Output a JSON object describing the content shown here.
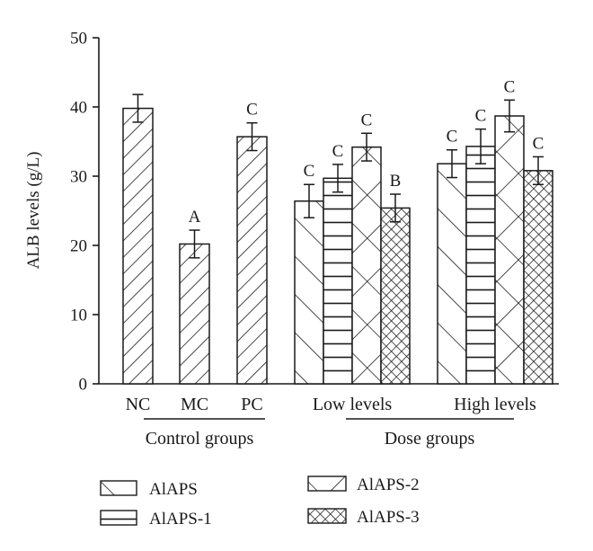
{
  "chart_data": {
    "type": "bar",
    "ylabel": "ALB levels (g/L)",
    "ylim": [
      0,
      50
    ],
    "yticks": [
      0,
      10,
      20,
      30,
      40,
      50
    ],
    "grid": false,
    "bars": [
      {
        "label": "NC",
        "value": 39.8,
        "error": 2.0,
        "pattern": "diag-right",
        "sig": ""
      },
      {
        "label": "MC",
        "value": 20.2,
        "error": 2.0,
        "pattern": "diag-right",
        "sig": "A"
      },
      {
        "label": "PC",
        "value": 35.7,
        "error": 2.0,
        "pattern": "diag-right",
        "sig": "C"
      }
    ],
    "dose_categories": [
      "Low levels",
      "High levels"
    ],
    "series": [
      {
        "name": "AlAPS",
        "pattern": "diag-left",
        "values": [
          26.4,
          31.8
        ],
        "errors": [
          2.4,
          2.0
        ],
        "sig": [
          "C",
          "C"
        ]
      },
      {
        "name": "AlAPS-1",
        "pattern": "horizontal",
        "values": [
          29.7,
          34.3
        ],
        "errors": [
          2.0,
          2.5
        ],
        "sig": [
          "C",
          "C"
        ]
      },
      {
        "name": "AlAPS-2",
        "pattern": "cross",
        "values": [
          34.2,
          38.7
        ],
        "errors": [
          2.0,
          2.3
        ],
        "sig": [
          "C",
          "C"
        ]
      },
      {
        "name": "AlAPS-3",
        "pattern": "crosshatch",
        "values": [
          25.4,
          30.8
        ],
        "errors": [
          2.0,
          2.0
        ],
        "sig": [
          "B",
          "C"
        ]
      }
    ],
    "group_labels": [
      "Control groups",
      "Dose groups"
    ],
    "legend_position": "bottom"
  }
}
